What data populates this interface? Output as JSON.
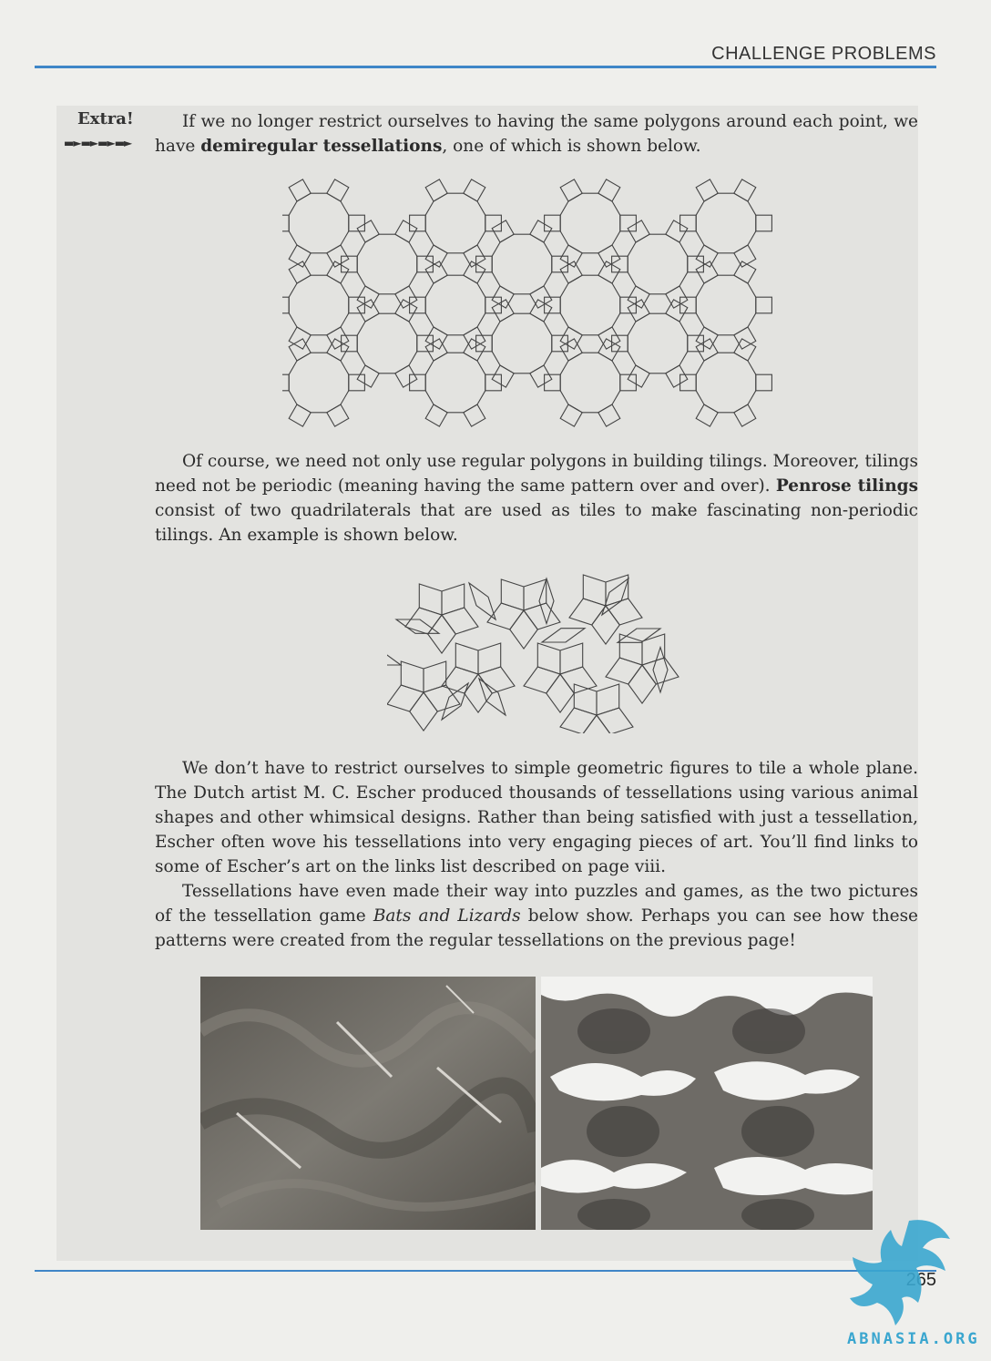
{
  "header": {
    "title": "CHALLENGE PROBLEMS"
  },
  "extra": {
    "label": "Extra!"
  },
  "paragraphs": {
    "p1_a": "If we no longer restrict ourselves to having the same polygons around each point, we have ",
    "p1_bold": "demiregular tessellations",
    "p1_b": ", one of which is shown below.",
    "p2_a": "Of course, we need not only use regular polygons in building tilings. Moreover, tilings need not be periodic (meaning having the same pattern over and over). ",
    "p2_bold": "Penrose tilings",
    "p2_b": " consist of two quadrilaterals that are used as tiles to make fascinating non-periodic tilings. An example is shown below.",
    "p3": "We don’t have to restrict ourselves to simple geometric figures to tile a whole plane. The Dutch artist M. C. Escher produced thousands of tessellations using various animal shapes and other whimsical designs. Rather than being satisfied with just a tessellation, Escher often wove his tessellations into very engaging pieces of art. You’ll find links to some of Escher’s art on the links list described on page viii.",
    "p4_a": "Tessellations have even made their way into puzzles and games, as the two pictures of the tessellation game ",
    "p4_italic": "Bats and Lizards",
    "p4_b": " below show. Perhaps you can see how these patterns were created from the regular tessellations on the previous page!"
  },
  "footer": {
    "page_number": "265"
  },
  "watermark": {
    "text": "ABNASIA.ORG"
  },
  "colors": {
    "rule": "#3f86c7",
    "box": "#e3e3e0",
    "watermark": "#3aa6cf"
  }
}
